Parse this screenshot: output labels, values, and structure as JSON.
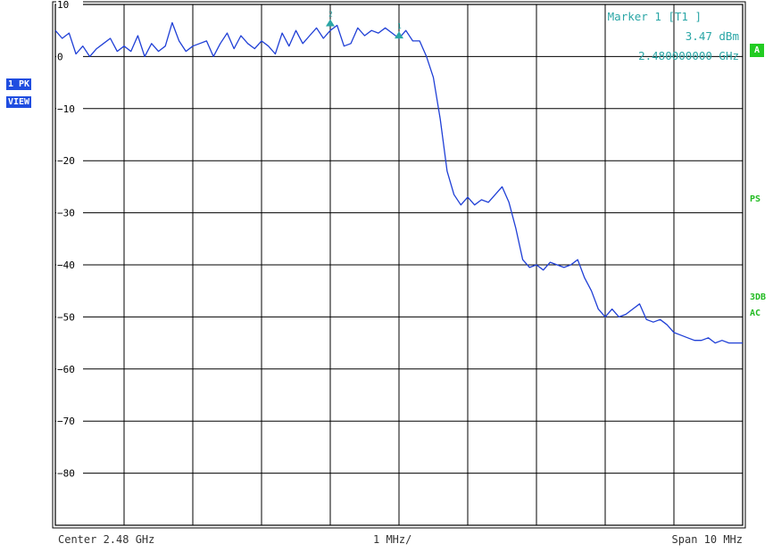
{
  "chart_data": {
    "type": "line",
    "title": "",
    "xlabel": "",
    "ylabel": "",
    "y_unit": "dBm",
    "x_unit": "GHz",
    "xlim": [
      2.475,
      2.485
    ],
    "ylim": [
      -90,
      10
    ],
    "grid": true,
    "y_ticks": [
      10,
      0,
      -10,
      -20,
      -30,
      -40,
      -50,
      -60,
      -70,
      -80
    ],
    "y_tick_labels": [
      "10",
      "0",
      "−10",
      "−20",
      "−30",
      "−40",
      "−50",
      "−60",
      "−70",
      "−80"
    ],
    "series": [
      {
        "color": "#1f3fd6",
        "x": [
          2.475,
          2.4751,
          2.4752,
          2.4753,
          2.4754,
          2.4755,
          2.4756,
          2.4757,
          2.4758,
          2.4759,
          2.476,
          2.4761,
          2.4762,
          2.4763,
          2.4764,
          2.4765,
          2.4766,
          2.4767,
          2.4768,
          2.4769,
          2.477,
          2.4771,
          2.4772,
          2.4773,
          2.4774,
          2.4775,
          2.4776,
          2.4777,
          2.4778,
          2.4779,
          2.478,
          2.4781,
          2.4782,
          2.4783,
          2.4784,
          2.4785,
          2.4786,
          2.4787,
          2.4788,
          2.4789,
          2.479,
          2.4791,
          2.4792,
          2.4793,
          2.4794,
          2.4795,
          2.4796,
          2.4797,
          2.4798,
          2.4799,
          2.48,
          2.4801,
          2.4802,
          2.4803,
          2.4804,
          2.4805,
          2.4806,
          2.4807,
          2.4808,
          2.4809,
          2.481,
          2.4811,
          2.4812,
          2.4813,
          2.4814,
          2.4815,
          2.4816,
          2.4817,
          2.4818,
          2.4819,
          2.482,
          2.4821,
          2.4822,
          2.4823,
          2.4824,
          2.4825,
          2.4826,
          2.4827,
          2.4828,
          2.4829,
          2.483,
          2.4831,
          2.4832,
          2.4833,
          2.4834,
          2.4835,
          2.4836,
          2.4837,
          2.4838,
          2.4839,
          2.484,
          2.4841,
          2.4842,
          2.4843,
          2.4844,
          2.4845,
          2.4846,
          2.4847,
          2.4848,
          2.4849,
          2.485
        ],
        "y": [
          5.0,
          3.5,
          4.5,
          0.5,
          2.0,
          0.0,
          1.5,
          2.5,
          3.5,
          1.0,
          2.0,
          1.0,
          4.0,
          0.0,
          2.5,
          1.0,
          2.0,
          6.5,
          3.0,
          1.0,
          2.0,
          2.5,
          3.0,
          0.0,
          2.5,
          4.5,
          1.5,
          4.0,
          2.5,
          1.5,
          3.0,
          2.0,
          0.5,
          4.5,
          2.0,
          5.0,
          2.5,
          4.0,
          5.5,
          3.5,
          5.0,
          6.0,
          2.0,
          2.5,
          5.5,
          4.0,
          5.0,
          4.5,
          5.5,
          4.5,
          3.5,
          5.0,
          3.0,
          3.0,
          0.0,
          -4.0,
          -12.0,
          -22.0,
          -26.5,
          -28.5,
          -27.0,
          -28.5,
          -27.5,
          -28.0,
          -26.5,
          -25.0,
          -28.0,
          -33.0,
          -39.0,
          -40.5,
          -40.0,
          -41.0,
          -39.5,
          -40.0,
          -40.5,
          -40.0,
          -39.0,
          -42.5,
          -45.0,
          -48.5,
          -50.0,
          -48.5,
          -50.0,
          -49.5,
          -48.5,
          -47.5,
          -50.5,
          -51.0,
          -50.5,
          -51.5,
          -53.0,
          -53.5,
          -54.0,
          -54.5,
          -54.5,
          -54.0,
          -55.0,
          -54.5,
          -55.0,
          -55.0,
          -55.0
        ]
      }
    ],
    "markers": [
      {
        "label": "1",
        "x": 2.48,
        "y": 3.47
      },
      {
        "label": "2",
        "x": 2.479,
        "y": 5.8
      }
    ]
  },
  "marker_info": {
    "line1": "Marker 1 [T1 ]",
    "line2": "3.47 dBm",
    "line3": "2.480000000 GHz"
  },
  "left_badges": {
    "trace": "1 PK",
    "mode": "VIEW"
  },
  "right_badges": {
    "a": "A",
    "ps": "PS",
    "db3": "3DB",
    "ac": "AC"
  },
  "footer": {
    "center": "Center 2.48 GHz",
    "div": "1 MHz/",
    "span": "Span 10 MHz"
  },
  "colors": {
    "trace": "#1f3fd6",
    "marker": "#2aa6a6",
    "grid": "#000000",
    "badge_blue": "#1f4de0",
    "badge_green": "#22cc22"
  }
}
